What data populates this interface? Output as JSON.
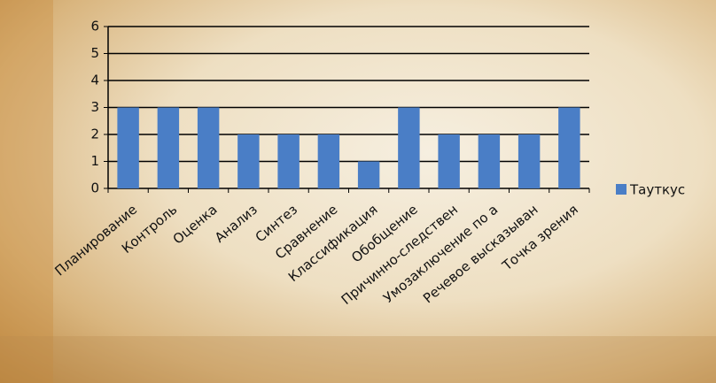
{
  "chart_data": {
    "type": "bar",
    "categories": [
      "Планирование",
      "Контроль",
      "Оценка",
      "Анализ",
      "Синтез",
      "Сравнение",
      "Классификация",
      "Обобщение",
      "Причинно-следствен",
      "Умозаключение по а",
      "Речевое высказыван",
      "Точка зрения"
    ],
    "series": [
      {
        "name": "Тауткус",
        "color": "#4a7ec6",
        "values": [
          3,
          3,
          3,
          2,
          2,
          2,
          1,
          3,
          2,
          2,
          2,
          3
        ]
      }
    ],
    "ylim": [
      0,
      6
    ],
    "yticks": [
      0,
      1,
      2,
      3,
      4,
      5,
      6
    ],
    "grid": true,
    "legend": "right"
  }
}
